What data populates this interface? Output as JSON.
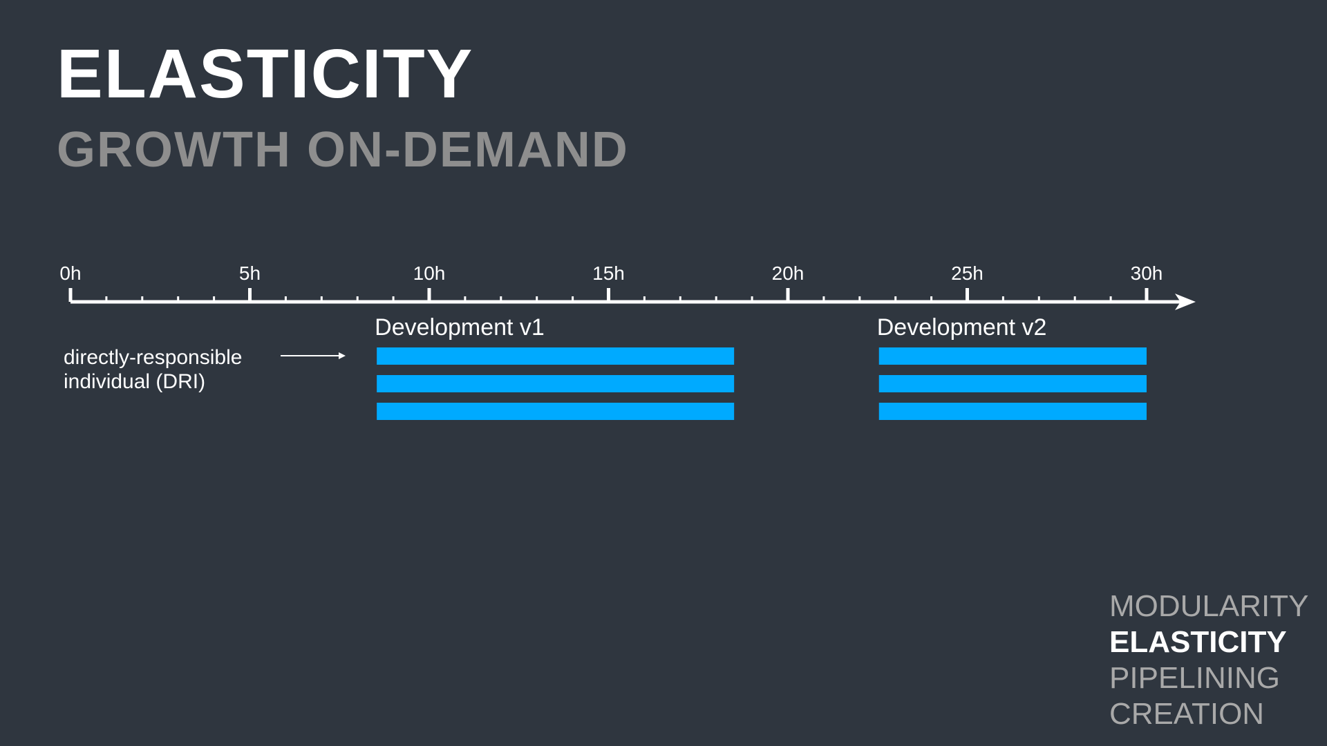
{
  "slide": {
    "title": "ELASTICITY",
    "subtitle": "GROWTH ON-DEMAND"
  },
  "timeline": {
    "unit_suffix": "h",
    "min": 0,
    "max": 30,
    "major_ticks": [
      0,
      5,
      10,
      15,
      20,
      25,
      30
    ],
    "major_tick_labels": [
      "0h",
      "5h",
      "10h",
      "15h",
      "20h",
      "25h",
      "30h"
    ],
    "minor_step": 1,
    "axis_color": "#ffffff"
  },
  "dri_label": {
    "line1": "directly-responsible",
    "line2": "individual (DRI)"
  },
  "phases": [
    {
      "label": "Development v1",
      "start": 8.5,
      "end": 18.5,
      "lanes": 3
    },
    {
      "label": "Development v2",
      "start": 22.5,
      "end": 30,
      "lanes": 3
    }
  ],
  "bar_color": "#00aaff",
  "nav": {
    "items": [
      {
        "label": "MODULARITY",
        "active": false
      },
      {
        "label": "ELASTICITY",
        "active": true
      },
      {
        "label": "PIPELINING",
        "active": false
      },
      {
        "label": "CREATION",
        "active": false
      }
    ]
  }
}
